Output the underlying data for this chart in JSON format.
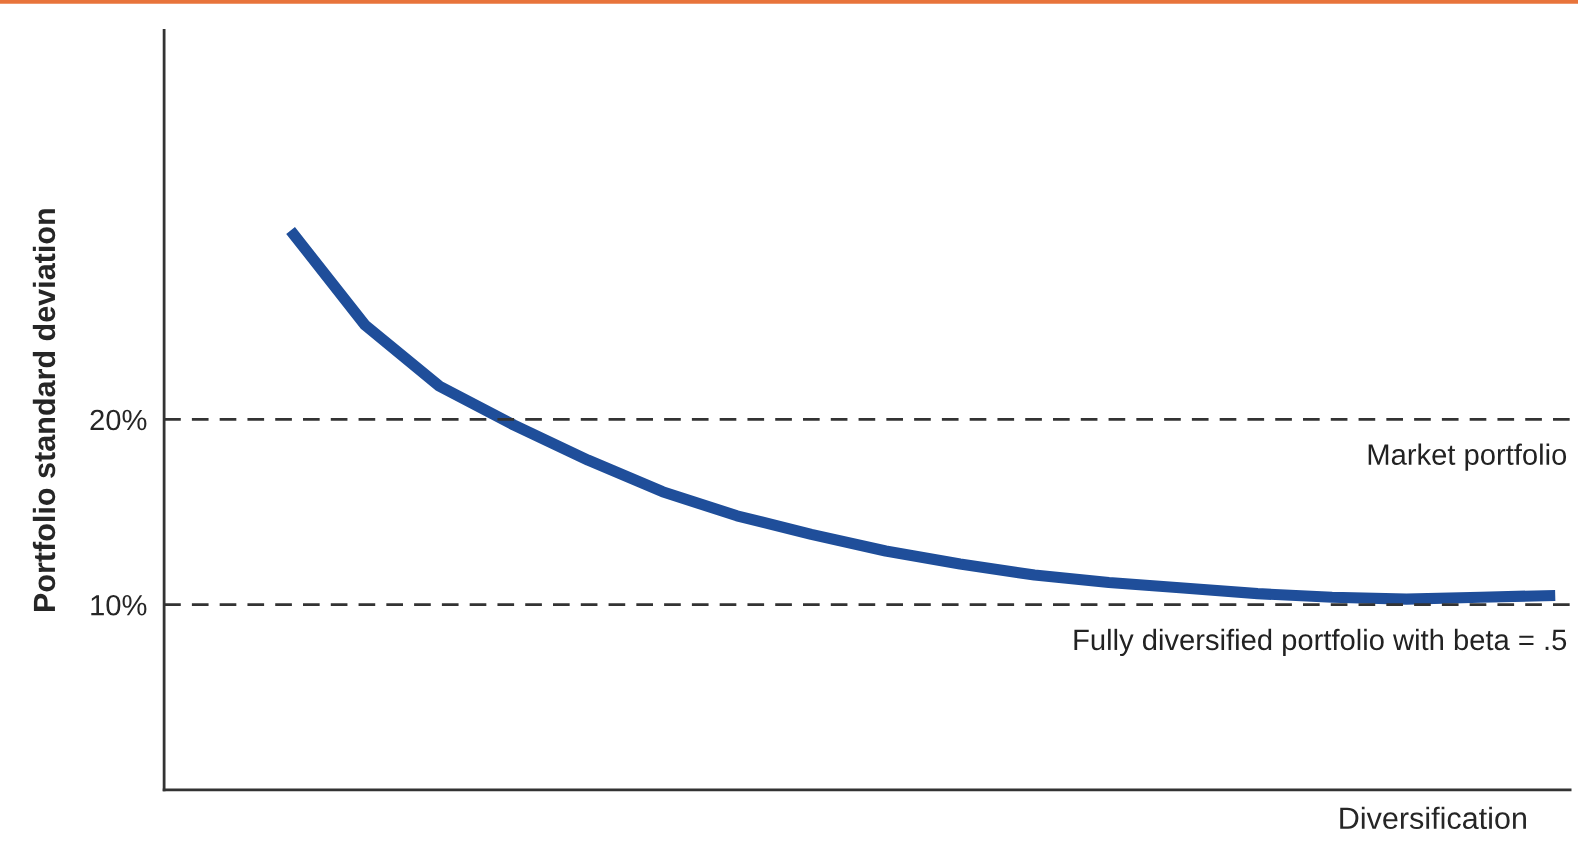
{
  "chart_data": {
    "type": "line",
    "xlabel": "Diversification",
    "ylabel": "Portfolio standard deviation",
    "categories": [
      null,
      null,
      null,
      null,
      null,
      null,
      null,
      null,
      null,
      null,
      null,
      null,
      null,
      null,
      null,
      null,
      null,
      null
    ],
    "series": [
      {
        "color": "#1f4e9a",
        "values": [
          30.2,
          25.1,
          21.8,
          19.7,
          17.8,
          16.1,
          14.8,
          13.8,
          12.9,
          12.2,
          11.6,
          11.2,
          10.9,
          10.6,
          10.4,
          10.3,
          10.4,
          10.5
        ]
      }
    ],
    "ylim": [
      0,
      41
    ],
    "yticks": [
      {
        "value": 10,
        "label": "10%"
      },
      {
        "value": 20,
        "label": "20%"
      }
    ],
    "tick_labels": "y",
    "grid": false,
    "legend": false,
    "marker": "none",
    "line_style": "solid",
    "ref_lines": [
      {
        "axis": "y",
        "value": 20,
        "label": "Market portfolio",
        "color": "#333333",
        "line_style": "dashed"
      },
      {
        "axis": "y",
        "value": 10,
        "label": "Fully diversified portfolio with beta = .5",
        "color": "#333333",
        "line_style": "dashed"
      }
    ]
  }
}
